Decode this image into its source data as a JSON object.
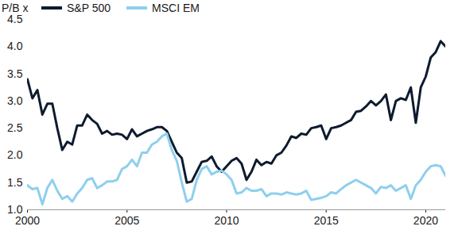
{
  "chart_data": {
    "type": "line",
    "y_label": "P/B x",
    "legend": "top-left",
    "grid": false,
    "xlim": [
      2000,
      2021
    ],
    "xticks": [
      2000,
      2005,
      2010,
      2015,
      2020
    ],
    "ylim": [
      1,
      4.5
    ],
    "yticks": [
      {
        "value": 1,
        "label": "1.0"
      },
      1.5,
      {
        "value": 2,
        "label": "2.0"
      },
      2.5,
      {
        "value": 3,
        "label": "3.0"
      },
      3.5,
      {
        "value": 4,
        "label": "4.0"
      },
      4.5
    ],
    "x": [
      2000,
      2000.25,
      2000.5,
      2000.75,
      2001,
      2001.25,
      2001.5,
      2001.75,
      2002,
      2002.25,
      2002.5,
      2002.75,
      2003,
      2003.25,
      2003.5,
      2003.75,
      2004,
      2004.25,
      2004.5,
      2004.75,
      2005,
      2005.25,
      2005.5,
      2005.75,
      2006,
      2006.25,
      2006.5,
      2006.75,
      2007,
      2007.25,
      2007.5,
      2007.75,
      2008,
      2008.25,
      2008.5,
      2008.75,
      2009,
      2009.25,
      2009.5,
      2009.75,
      2010,
      2010.25,
      2010.5,
      2010.75,
      2011,
      2011.25,
      2011.5,
      2011.75,
      2012,
      2012.25,
      2012.5,
      2012.75,
      2013,
      2013.25,
      2013.5,
      2013.75,
      2014,
      2014.25,
      2014.5,
      2014.75,
      2015,
      2015.25,
      2015.5,
      2015.75,
      2016,
      2016.25,
      2016.5,
      2016.75,
      2017,
      2017.25,
      2017.5,
      2017.75,
      2018,
      2018.25,
      2018.5,
      2018.75,
      2019,
      2019.25,
      2019.5,
      2019.75,
      2020,
      2020.25,
      2020.5,
      2020.75,
      2021
    ],
    "series": [
      {
        "name": "S&P 500",
        "color": "#0e1b2e",
        "values": [
          3.4,
          3.05,
          3.2,
          2.75,
          2.95,
          2.95,
          2.5,
          2.1,
          2.25,
          2.2,
          2.55,
          2.55,
          2.75,
          2.65,
          2.58,
          2.4,
          2.45,
          2.38,
          2.4,
          2.38,
          2.3,
          2.48,
          2.35,
          2.4,
          2.45,
          2.48,
          2.52,
          2.52,
          2.45,
          2.25,
          2.05,
          1.95,
          1.5,
          1.52,
          1.7,
          1.88,
          1.9,
          1.98,
          1.8,
          1.7,
          1.8,
          1.9,
          1.95,
          1.85,
          1.55,
          1.7,
          1.92,
          1.82,
          1.88,
          1.85,
          2.0,
          2.05,
          2.18,
          2.35,
          2.32,
          2.4,
          2.38,
          2.5,
          2.52,
          2.55,
          2.3,
          2.5,
          2.52,
          2.55,
          2.6,
          2.65,
          2.8,
          2.82,
          2.9,
          3.0,
          2.92,
          3.0,
          3.12,
          2.65,
          3.0,
          3.05,
          3.02,
          3.25,
          2.6,
          3.25,
          3.45,
          3.8,
          3.9,
          4.1,
          4.0
        ]
      },
      {
        "name": "MSCI EM",
        "color": "#8ecfee",
        "values": [
          1.45,
          1.38,
          1.4,
          1.1,
          1.4,
          1.55,
          1.35,
          1.2,
          1.25,
          1.15,
          1.3,
          1.4,
          1.55,
          1.58,
          1.4,
          1.45,
          1.52,
          1.52,
          1.55,
          1.75,
          1.8,
          1.92,
          1.8,
          2.05,
          2.05,
          2.2,
          2.25,
          2.35,
          2.4,
          2.1,
          1.9,
          1.5,
          1.15,
          1.2,
          1.55,
          1.75,
          1.8,
          1.65,
          1.7,
          1.72,
          1.65,
          1.55,
          1.3,
          1.32,
          1.4,
          1.35,
          1.35,
          1.38,
          1.25,
          1.3,
          1.3,
          1.28,
          1.32,
          1.3,
          1.28,
          1.3,
          1.35,
          1.18,
          1.2,
          1.22,
          1.25,
          1.32,
          1.3,
          1.38,
          1.45,
          1.5,
          1.55,
          1.5,
          1.45,
          1.4,
          1.3,
          1.42,
          1.4,
          1.45,
          1.35,
          1.4,
          1.45,
          1.2,
          1.45,
          1.55,
          1.7,
          1.8,
          1.82,
          1.8,
          1.62
        ]
      }
    ]
  }
}
